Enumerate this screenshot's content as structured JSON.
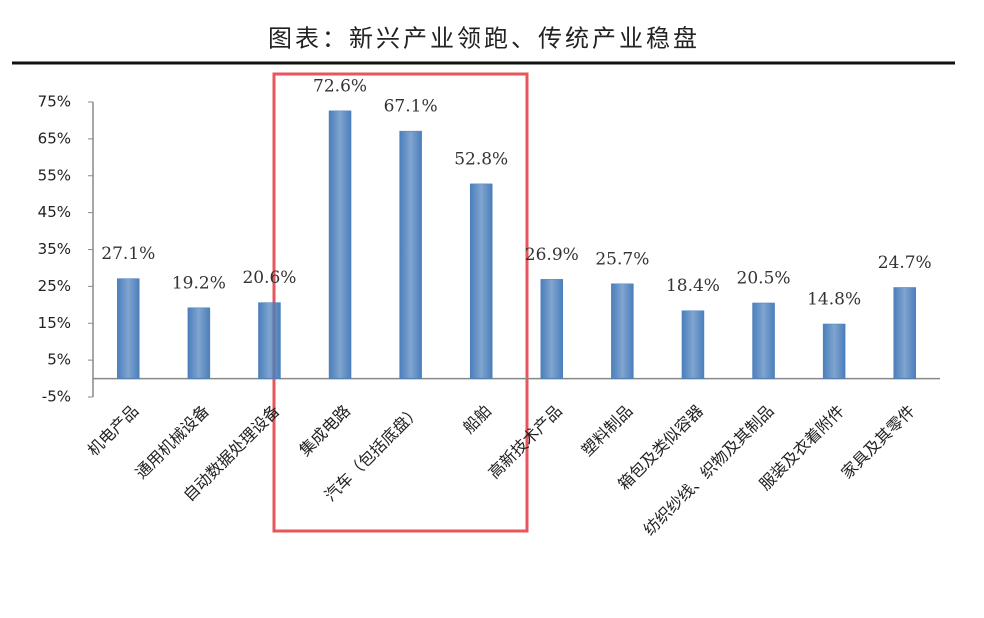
{
  "chart_data": {
    "type": "bar",
    "title": "图表：新兴产业领跑、传统产业稳盘",
    "categories": [
      "机电产品",
      "通用机械设备",
      "自动数据处理设备",
      "集成电路",
      "汽车（包括底盘）",
      "船舶",
      "高新技术产品",
      "塑料制品",
      "箱包及类似容器",
      "纺织纱线、织物及其制品",
      "服装及衣着附件",
      "家具及其零件"
    ],
    "values": [
      27.1,
      19.2,
      20.6,
      72.6,
      67.1,
      52.8,
      26.9,
      25.7,
      18.4,
      20.5,
      14.8,
      24.7
    ],
    "value_labels": [
      "27.1%",
      "19.2%",
      "20.6%",
      "72.6%",
      "67.1%",
      "52.8%",
      "26.9%",
      "25.7%",
      "18.4%",
      "20.5%",
      "14.8%",
      "24.7%"
    ],
    "color": "#4a7ebb",
    "ylim": [
      -5,
      75
    ],
    "yticks": [
      {
        "value": -5,
        "label": "-5%"
      },
      {
        "value": 5,
        "label": "5%"
      },
      {
        "value": 15,
        "label": "15%"
      },
      {
        "value": 25,
        "label": "25%"
      },
      {
        "value": 35,
        "label": "35%"
      },
      {
        "value": 45,
        "label": "45%"
      },
      {
        "value": 55,
        "label": "55%"
      },
      {
        "value": 65,
        "label": "65%"
      },
      {
        "value": 75,
        "label": "75%"
      }
    ],
    "grid": false
  }
}
